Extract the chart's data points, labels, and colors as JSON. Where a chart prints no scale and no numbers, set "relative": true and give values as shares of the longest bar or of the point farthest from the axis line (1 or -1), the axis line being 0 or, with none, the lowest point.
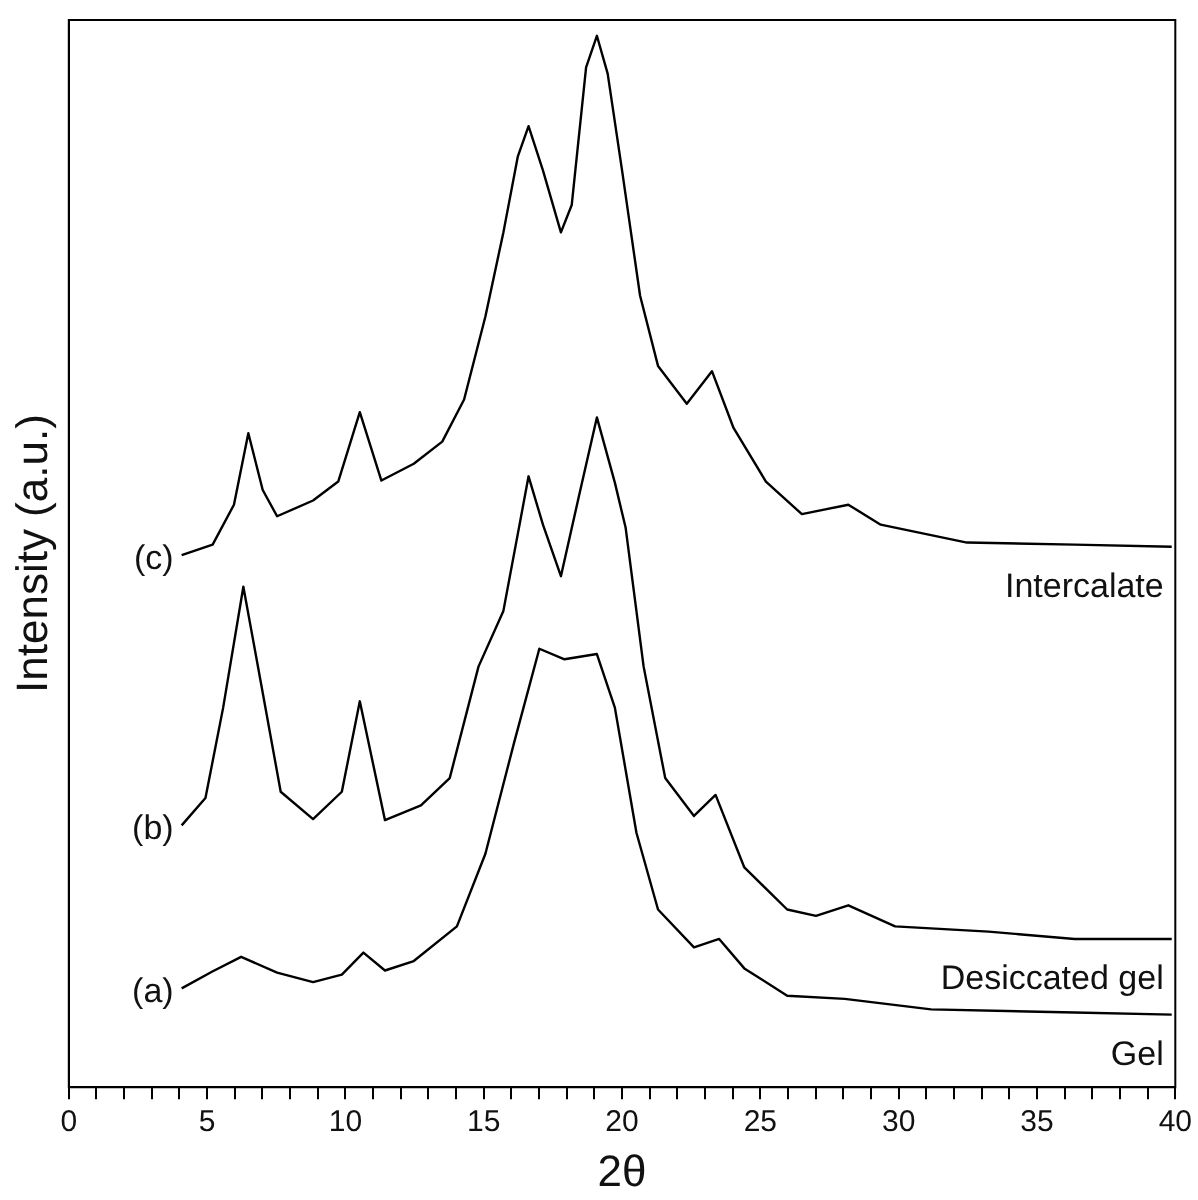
{
  "chart_data": {
    "type": "line",
    "xlabel": "2θ",
    "ylabel": "Intensity (a.u.)",
    "relative": true,
    "grid": false,
    "legend": false,
    "marker": "none",
    "line_style": "solid",
    "xlim": [
      0,
      40
    ],
    "xticks": [
      0,
      {
        "value": 1,
        "label": null
      },
      {
        "value": 2,
        "label": null
      },
      {
        "value": 3,
        "label": null
      },
      {
        "value": 4,
        "label": null
      },
      5,
      {
        "value": 6,
        "label": null
      },
      {
        "value": 7,
        "label": null
      },
      {
        "value": 8,
        "label": null
      },
      {
        "value": 9,
        "label": null
      },
      10,
      {
        "value": 11,
        "label": null
      },
      {
        "value": 12,
        "label": null
      },
      {
        "value": 13,
        "label": null
      },
      {
        "value": 14,
        "label": null
      },
      15,
      {
        "value": 16,
        "label": null
      },
      {
        "value": 17,
        "label": null
      },
      {
        "value": 18,
        "label": null
      },
      {
        "value": 19,
        "label": null
      },
      20,
      {
        "value": 21,
        "label": null
      },
      {
        "value": 22,
        "label": null
      },
      {
        "value": 23,
        "label": null
      },
      {
        "value": 24,
        "label": null
      },
      25,
      {
        "value": 26,
        "label": null
      },
      {
        "value": 27,
        "label": null
      },
      {
        "value": 28,
        "label": null
      },
      {
        "value": 29,
        "label": null
      },
      30,
      {
        "value": 31,
        "label": null
      },
      {
        "value": 32,
        "label": null
      },
      {
        "value": 33,
        "label": null
      },
      {
        "value": 34,
        "label": null
      },
      35,
      {
        "value": 36,
        "label": null
      },
      {
        "value": 37,
        "label": null
      },
      {
        "value": 38,
        "label": null
      },
      {
        "value": 39,
        "label": null
      },
      40
    ],
    "series": [
      {
        "name": "Gel",
        "color": "#000000",
        "x": [
          4.08,
          5.19,
          6.23,
          7.53,
          8.83,
          9.87,
          10.65,
          11.43,
          12.47,
          14.03,
          15.06,
          16.1,
          17.01,
          17.92,
          19.09,
          19.74,
          20.52,
          21.3,
          22.6,
          23.51,
          24.42,
          25.97,
          28.05,
          31.17,
          36.36,
          39.87
        ],
        "values": [
          0.094,
          0.11,
          0.124,
          0.109,
          0.1,
          0.107,
          0.128,
          0.111,
          0.12,
          0.153,
          0.222,
          0.328,
          0.417,
          0.407,
          0.412,
          0.361,
          0.242,
          0.169,
          0.133,
          0.141,
          0.113,
          0.087,
          0.084,
          0.074,
          0.071,
          0.069
        ]
      },
      {
        "name": "Desiccated gel",
        "color": "#000000",
        "x": [
          4.08,
          4.94,
          5.58,
          6.31,
          6.88,
          7.66,
          8.83,
          9.87,
          10.52,
          11.43,
          12.73,
          13.77,
          14.81,
          15.71,
          16.23,
          16.62,
          17.14,
          17.79,
          18.44,
          19.09,
          19.74,
          20.13,
          20.78,
          21.56,
          22.6,
          23.38,
          24.42,
          25.97,
          27.01,
          28.18,
          29.87,
          33.25,
          36.36,
          39.87
        ],
        "values": [
          0.249,
          0.275,
          0.361,
          0.476,
          0.394,
          0.281,
          0.255,
          0.281,
          0.367,
          0.254,
          0.268,
          0.294,
          0.4,
          0.453,
          0.526,
          0.581,
          0.535,
          0.486,
          0.562,
          0.637,
          0.575,
          0.532,
          0.4,
          0.294,
          0.258,
          0.278,
          0.209,
          0.169,
          0.163,
          0.173,
          0.153,
          0.148,
          0.141,
          0.141
        ]
      },
      {
        "name": "Intercalate",
        "color": "#000000",
        "x": [
          4.08,
          5.2,
          5.97,
          6.49,
          7.01,
          7.53,
          8.83,
          9.74,
          10.52,
          11.3,
          12.47,
          13.5,
          14.29,
          15.06,
          15.71,
          16.23,
          16.62,
          17.14,
          17.79,
          18.18,
          18.7,
          19.09,
          19.48,
          20.0,
          20.65,
          21.3,
          22.34,
          23.25,
          24.03,
          25.2,
          26.5,
          28.18,
          29.35,
          32.47,
          36.36,
          39.87
        ],
        "values": [
          0.506,
          0.516,
          0.554,
          0.622,
          0.568,
          0.543,
          0.558,
          0.576,
          0.642,
          0.577,
          0.593,
          0.614,
          0.654,
          0.733,
          0.813,
          0.885,
          0.914,
          0.872,
          0.813,
          0.839,
          0.97,
          1.0,
          0.964,
          0.872,
          0.753,
          0.686,
          0.65,
          0.681,
          0.627,
          0.576,
          0.545,
          0.554,
          0.535,
          0.518,
          0.516,
          0.514
        ]
      }
    ],
    "annotations": [
      "(a)",
      "(b)",
      "(c)"
    ]
  }
}
